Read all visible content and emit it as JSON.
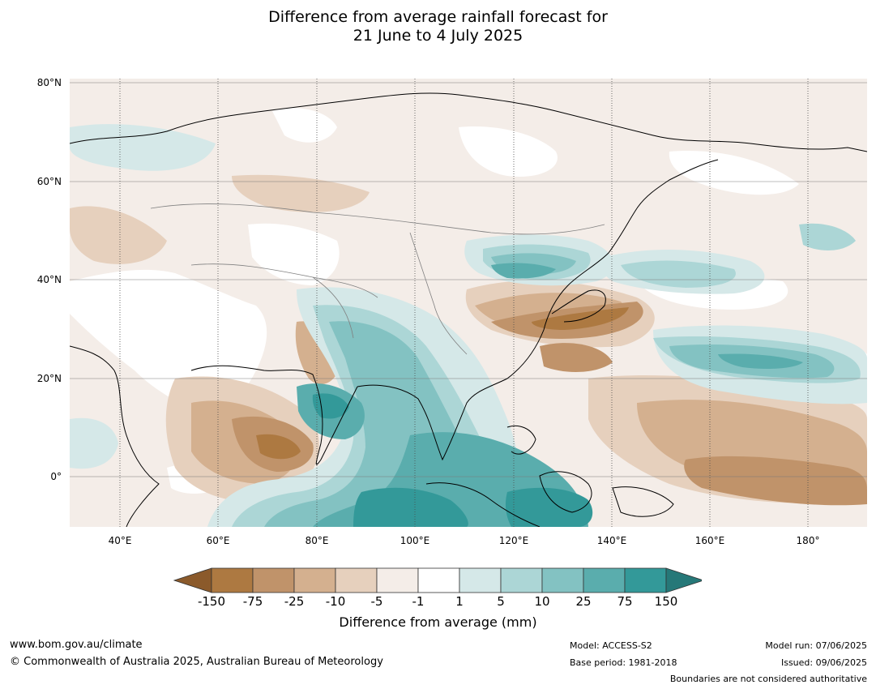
{
  "title": {
    "line1": "Difference from average rainfall forecast for",
    "line2": "21 June to 4 July 2025"
  },
  "map": {
    "lat_labels": [
      "80°N",
      "60°N",
      "40°N",
      "20°N",
      "0°"
    ],
    "lon_labels": [
      "40°E",
      "60°E",
      "80°E",
      "100°E",
      "120°E",
      "140°E",
      "160°E",
      "180°"
    ]
  },
  "colorbar": {
    "ticks": [
      "-150",
      "-75",
      "-25",
      "-10",
      "-5",
      "-1",
      "1",
      "5",
      "10",
      "25",
      "75",
      "150"
    ],
    "colors": [
      "#8b5a2b",
      "#ad7941",
      "#c0936a",
      "#d4b08f",
      "#e6d0bd",
      "#f4ede8",
      "#ffffff",
      "#d5e8e8",
      "#acd6d6",
      "#83c2c2",
      "#5aadad",
      "#339999",
      "#267878"
    ],
    "label": "Difference from average (mm)"
  },
  "footer": {
    "url": "www.bom.gov.au/climate",
    "copyright": "© Commonwealth of Australia 2025, Australian Bureau of Meteorology",
    "model": "Model: ACCESS-S2",
    "base_period": "Base period: 1981-2018",
    "model_run": "Model run: 07/06/2025",
    "issued": "Issued: 09/06/2025",
    "disclaimer": "Boundaries are not considered authoritative"
  }
}
